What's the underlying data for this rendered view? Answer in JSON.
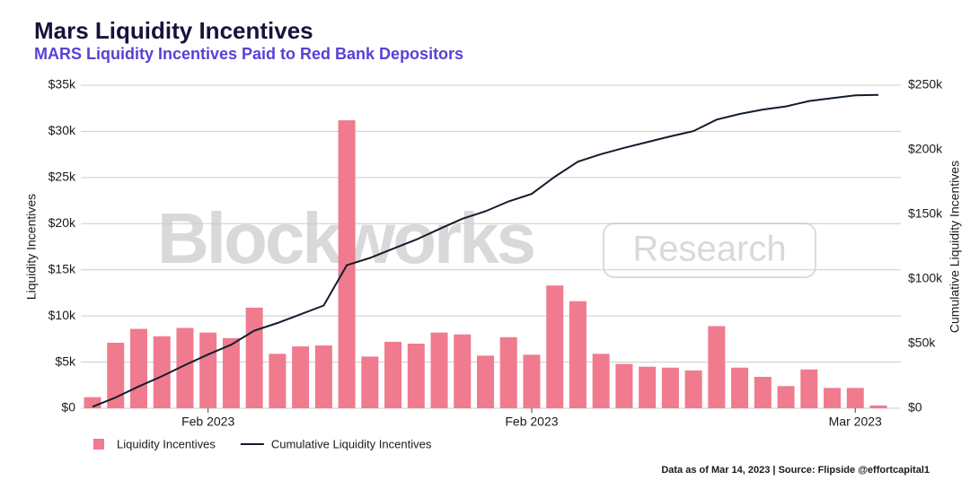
{
  "chart_data": {
    "type": "combo",
    "title": "Mars Liquidity Incentives",
    "subtitle": "MARS Liquidity Incentives Paid to Red Bank Depositors",
    "watermark": [
      "Blockworks",
      "Research"
    ],
    "footer": "Data as of Mar 14, 2023 | Source: Flipside @effortcapital1",
    "y_label": "Liquidity Incentives",
    "y2_label": "Cumulative Liquidity Incentives",
    "categories": [
      null,
      null,
      null,
      null,
      null,
      "Feb 2023",
      null,
      null,
      null,
      null,
      null,
      null,
      null,
      null,
      null,
      null,
      null,
      null,
      null,
      "Feb 2023",
      null,
      null,
      null,
      null,
      null,
      null,
      null,
      null,
      null,
      null,
      null,
      null,
      null,
      "Mar 2023",
      null
    ],
    "series": [
      {
        "name": "Liquidity Incentives",
        "type": "bar",
        "color": "#f07b8e",
        "values": [
          1200,
          7100,
          8600,
          7800,
          8700,
          8200,
          7600,
          10900,
          5900,
          6700,
          6800,
          31200,
          5600,
          7200,
          7000,
          8200,
          8000,
          5700,
          7700,
          5800,
          13300,
          11600,
          5900,
          4800,
          4500,
          4400,
          4100,
          8900,
          4400,
          3400,
          2400,
          4200,
          2200,
          2200,
          300
        ]
      },
      {
        "name": "Cumulative Liquidity Incentives",
        "type": "line",
        "color": "#111d2b",
        "axis": "y2",
        "values": [
          1200,
          8300,
          16900,
          24700,
          33400,
          41600,
          49200,
          60100,
          66000,
          72700,
          79500,
          110700,
          116300,
          123500,
          130500,
          138700,
          146700,
          152400,
          160100,
          165900,
          179200,
          190800,
          196700,
          201500,
          206000,
          210400,
          214500,
          223400,
          227800,
          231200,
          233600,
          237800,
          240000,
          242200,
          242500
        ]
      }
    ],
    "ylim": [
      0,
      35000
    ],
    "yticks": [
      {
        "value": 0,
        "label": "$0"
      },
      {
        "value": 5000,
        "label": "$5k"
      },
      {
        "value": 10000,
        "label": "$10k"
      },
      {
        "value": 15000,
        "label": "$15k"
      },
      {
        "value": 20000,
        "label": "$20k"
      },
      {
        "value": 25000,
        "label": "$25k"
      },
      {
        "value": 30000,
        "label": "$30k"
      },
      {
        "value": 35000,
        "label": "$35k"
      }
    ],
    "y2lim": [
      0,
      250000
    ],
    "y2ticks": [
      {
        "value": 0,
        "label": "$0"
      },
      {
        "value": 50000,
        "label": "$50k"
      },
      {
        "value": 100000,
        "label": "$100k"
      },
      {
        "value": 150000,
        "label": "$150k"
      },
      {
        "value": 200000,
        "label": "$200k"
      },
      {
        "value": 250000,
        "label": "$250k"
      }
    ],
    "grid": true,
    "legend": "bottom-left"
  }
}
